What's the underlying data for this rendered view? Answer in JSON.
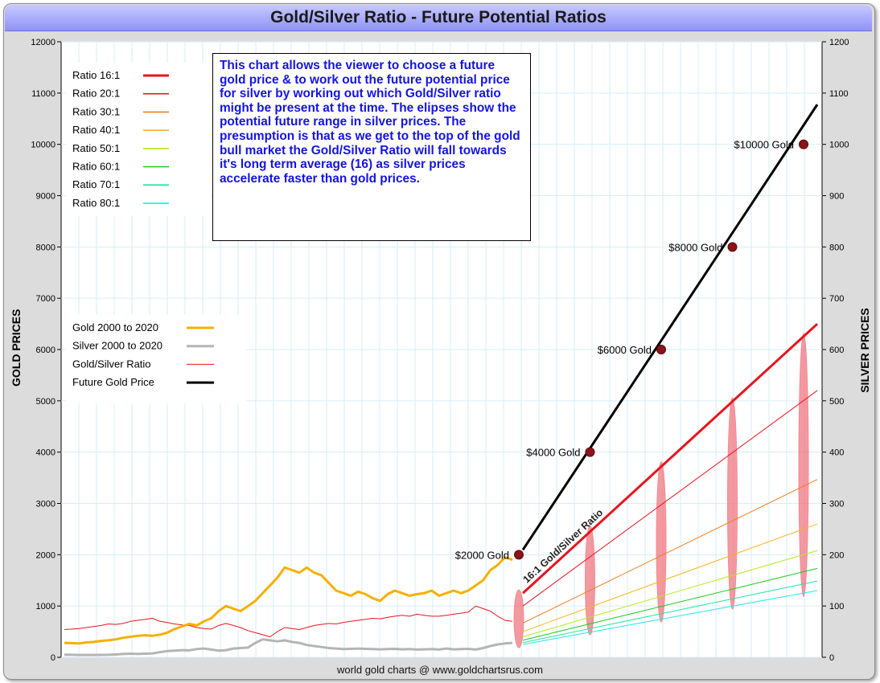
{
  "title": "Gold/Silver Ratio - Future Potential Ratios",
  "footer": "world gold charts @ www.goldchartsrus.com",
  "info_text": "This chart allows the viewer to choose a future gold price & to work out the future potential price for silver by working out which Gold/Silver ratio might be present at the time. The elipses show the potential future range in silver prices. The presumption is that as we get to the top of the gold bull market the Gold/Silver Ratio will fall towards it's long term average (16) as silver prices accelerate faster than gold prices.",
  "line_annotation": "16:1 Gold/Silver Ratio",
  "chart_data": {
    "type": "line",
    "title": "Gold/Silver Ratio - Future Potential Ratios",
    "ylabel": "GOLD PRICES",
    "y2label": "SILVER PRICES",
    "ylim": [
      0,
      12000
    ],
    "y2lim": [
      0,
      1200
    ],
    "y_ticks": [
      "0",
      "1000",
      "2000",
      "3000",
      "4000",
      "5000",
      "6000",
      "7000",
      "8000",
      "9000",
      "10000",
      "11000",
      "12000"
    ],
    "y2_ticks": [
      "0",
      "100",
      "200",
      "300",
      "400",
      "500",
      "600",
      "700",
      "800",
      "900",
      "1000",
      "1100",
      "1200"
    ],
    "grid": true,
    "legend_ratios": [
      {
        "label": "Ratio 16:1",
        "color": "#e8141e",
        "ratio": 16,
        "width": 3
      },
      {
        "label": "Ratio 20:1",
        "color": "#e8141e",
        "ratio": 20,
        "width": 1
      },
      {
        "label": "Ratio 30:1",
        "color": "#f07d1e",
        "ratio": 30,
        "width": 1
      },
      {
        "label": "Ratio 40:1",
        "color": "#f5b61e",
        "ratio": 40,
        "width": 1
      },
      {
        "label": "Ratio 50:1",
        "color": "#b4eb1e",
        "ratio": 50,
        "width": 1
      },
      {
        "label": "Ratio 60:1",
        "color": "#1ec81e",
        "ratio": 60,
        "width": 1
      },
      {
        "label": "Ratio 70:1",
        "color": "#1ee6a0",
        "ratio": 70,
        "width": 1
      },
      {
        "label": "Ratio 80:1",
        "color": "#1ee6f0",
        "ratio": 80,
        "width": 1
      }
    ],
    "legend_series": [
      {
        "label": "Gold 2000 to 2020",
        "color": "#f5b000",
        "width": 3
      },
      {
        "label": "Silver 2000 to 2020",
        "color": "#b4b4b4",
        "width": 3
      },
      {
        "label": "Gold/Silver Ratio",
        "color": "#e8141e",
        "width": 1
      },
      {
        "label": "Future Gold Price",
        "color": "#000000",
        "width": 3
      }
    ],
    "future_points": [
      {
        "label": "$2000 Gold",
        "gold": 2000
      },
      {
        "label": "$4000 Gold",
        "gold": 4000
      },
      {
        "label": "$6000 Gold",
        "gold": 6000
      },
      {
        "label": "$8000 Gold",
        "gold": 8000
      },
      {
        "label": "$10000 Gold",
        "gold": 10000
      }
    ],
    "gold_2000_2020": [
      280,
      275,
      270,
      290,
      300,
      320,
      330,
      350,
      380,
      400,
      420,
      430,
      420,
      440,
      480,
      550,
      600,
      650,
      620,
      700,
      760,
      900,
      1000,
      950,
      900,
      1000,
      1100,
      1250,
      1400,
      1550,
      1750,
      1700,
      1650,
      1750,
      1650,
      1600,
      1450,
      1300,
      1250,
      1200,
      1280,
      1230,
      1150,
      1100,
      1230,
      1300,
      1250,
      1200,
      1230,
      1250,
      1300,
      1200,
      1250,
      1300,
      1250,
      1300,
      1400,
      1500,
      1700,
      1800,
      1950,
      1900
    ],
    "silver_2000_2020": [
      50,
      48,
      45,
      46,
      45,
      47,
      48,
      55,
      65,
      70,
      65,
      70,
      75,
      100,
      120,
      130,
      140,
      135,
      160,
      170,
      150,
      130,
      140,
      170,
      180,
      190,
      280,
      350,
      330,
      310,
      330,
      300,
      280,
      240,
      220,
      200,
      180,
      170,
      160,
      165,
      170,
      165,
      160,
      155,
      160,
      165,
      155,
      160,
      150,
      155,
      160,
      150,
      170,
      155,
      160,
      165,
      150,
      180,
      220,
      250,
      270,
      280
    ],
    "ratio_2000_2020": [
      54,
      55,
      56,
      58,
      60,
      62,
      65,
      64,
      66,
      70,
      72,
      74,
      76,
      70,
      68,
      65,
      63,
      62,
      58,
      56,
      55,
      62,
      66,
      62,
      58,
      52,
      48,
      44,
      40,
      50,
      58,
      56,
      54,
      58,
      62,
      64,
      66,
      65,
      68,
      70,
      72,
      74,
      76,
      75,
      78,
      80,
      82,
      80,
      84,
      82,
      80,
      80,
      82,
      84,
      86,
      88,
      100,
      95,
      90,
      80,
      72,
      70
    ]
  }
}
